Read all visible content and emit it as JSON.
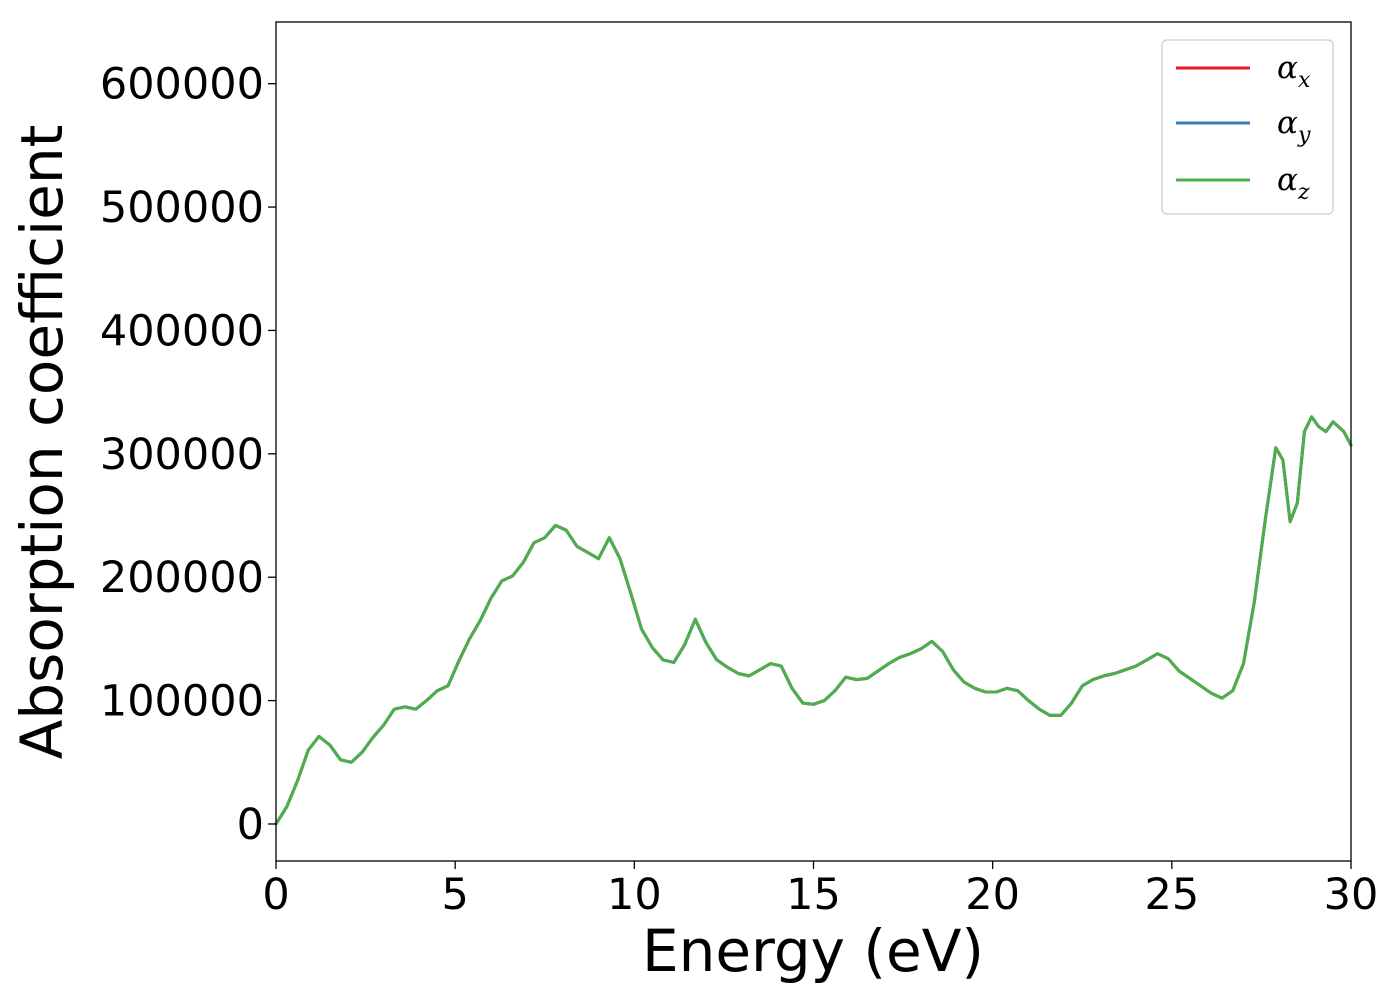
{
  "chart_data": {
    "type": "line",
    "title": "",
    "xlabel": "Energy (eV)",
    "ylabel": "Absorption coefficient",
    "xlim": [
      0,
      30
    ],
    "ylim": [
      -30000,
      650000
    ],
    "xticks": [
      0,
      5,
      10,
      15,
      20,
      25,
      30
    ],
    "xtick_labels": [
      "0",
      "5",
      "10",
      "15",
      "20",
      "25",
      "30"
    ],
    "yticks": [
      0,
      100000,
      200000,
      300000,
      400000,
      500000,
      600000
    ],
    "ytick_labels": [
      "0",
      "100000",
      "200000",
      "300000",
      "400000",
      "500000",
      "600000"
    ],
    "grid": false,
    "legend_position": "top-right",
    "legend": [
      {
        "symbol": "α",
        "subscript": "x",
        "color": "#e41a1c"
      },
      {
        "symbol": "α",
        "subscript": "y",
        "color": "#377eb8"
      },
      {
        "symbol": "α",
        "subscript": "z",
        "color": "#4daf4a"
      }
    ],
    "x": [
      0,
      0.3,
      0.6,
      0.9,
      1.2,
      1.5,
      1.8,
      2.1,
      2.4,
      2.7,
      3.0,
      3.3,
      3.6,
      3.9,
      4.2,
      4.5,
      4.8,
      5.1,
      5.4,
      5.7,
      6.0,
      6.3,
      6.6,
      6.9,
      7.2,
      7.5,
      7.8,
      8.1,
      8.4,
      8.7,
      9.0,
      9.3,
      9.6,
      9.9,
      10.2,
      10.5,
      10.8,
      11.1,
      11.4,
      11.7,
      12.0,
      12.3,
      12.6,
      12.9,
      13.2,
      13.5,
      13.8,
      14.1,
      14.4,
      14.7,
      15.0,
      15.3,
      15.6,
      15.9,
      16.2,
      16.5,
      16.8,
      17.1,
      17.4,
      17.7,
      18.0,
      18.3,
      18.6,
      18.9,
      19.2,
      19.5,
      19.8,
      20.1,
      20.4,
      20.7,
      21.0,
      21.3,
      21.6,
      21.9,
      22.2,
      22.5,
      22.8,
      23.1,
      23.4,
      23.7,
      24.0,
      24.3,
      24.6,
      24.9,
      25.2,
      25.5,
      25.8,
      26.1,
      26.4,
      26.7,
      27.0,
      27.3,
      27.6,
      27.9,
      28.1,
      28.3,
      28.5,
      28.7,
      28.9,
      29.1,
      29.3,
      29.5,
      29.8,
      30.0
    ],
    "series": [
      {
        "name": "α_x",
        "color": "#e41a1c",
        "values": [
          0,
          14000,
          35000,
          60000,
          71000,
          64000,
          52000,
          50000,
          58000,
          70000,
          80000,
          93000,
          95000,
          93000,
          100000,
          108000,
          112000,
          132000,
          150000,
          165000,
          183000,
          197000,
          201000,
          212000,
          228000,
          232000,
          242000,
          238000,
          225000,
          220000,
          215000,
          232000,
          215000,
          187000,
          158000,
          143000,
          133000,
          131000,
          145000,
          166000,
          147000,
          133000,
          127000,
          122000,
          120000,
          125000,
          130000,
          128000,
          110000,
          98000,
          97000,
          100000,
          108000,
          119000,
          117000,
          118000,
          124000,
          130000,
          135000,
          138000,
          142000,
          148000,
          140000,
          125000,
          115000,
          110000,
          107000,
          107000,
          110000,
          108000,
          100000,
          93000,
          88000,
          88000,
          98000,
          112000,
          117000,
          120000,
          122000,
          125000,
          128000,
          133000,
          138000,
          134000,
          124000,
          118000,
          112000,
          106000,
          102000,
          108000,
          130000,
          180000,
          245000,
          305000,
          295000,
          245000,
          260000,
          318000,
          330000,
          322000,
          318000,
          326000,
          318000,
          307000
        ]
      },
      {
        "name": "α_y",
        "color": "#377eb8",
        "values": [
          0,
          14000,
          35000,
          60000,
          71000,
          64000,
          52000,
          50000,
          58000,
          70000,
          80000,
          93000,
          95000,
          93000,
          100000,
          108000,
          112000,
          132000,
          150000,
          165000,
          183000,
          197000,
          201000,
          212000,
          228000,
          232000,
          242000,
          238000,
          225000,
          220000,
          215000,
          232000,
          215000,
          187000,
          158000,
          143000,
          133000,
          131000,
          145000,
          166000,
          147000,
          133000,
          127000,
          122000,
          120000,
          125000,
          130000,
          128000,
          110000,
          98000,
          97000,
          100000,
          108000,
          119000,
          117000,
          118000,
          124000,
          130000,
          135000,
          138000,
          142000,
          148000,
          140000,
          125000,
          115000,
          110000,
          107000,
          107000,
          110000,
          108000,
          100000,
          93000,
          88000,
          88000,
          98000,
          112000,
          117000,
          120000,
          122000,
          125000,
          128000,
          133000,
          138000,
          134000,
          124000,
          118000,
          112000,
          106000,
          102000,
          108000,
          130000,
          180000,
          245000,
          305000,
          295000,
          245000,
          260000,
          318000,
          330000,
          322000,
          318000,
          326000,
          318000,
          307000
        ]
      },
      {
        "name": "α_z",
        "color": "#4daf4a",
        "values": [
          0,
          14000,
          35000,
          60000,
          71000,
          64000,
          52000,
          50000,
          58000,
          70000,
          80000,
          93000,
          95000,
          93000,
          100000,
          108000,
          112000,
          132000,
          150000,
          165000,
          183000,
          197000,
          201000,
          212000,
          228000,
          232000,
          242000,
          238000,
          225000,
          220000,
          215000,
          232000,
          215000,
          187000,
          158000,
          143000,
          133000,
          131000,
          145000,
          166000,
          147000,
          133000,
          127000,
          122000,
          120000,
          125000,
          130000,
          128000,
          110000,
          98000,
          97000,
          100000,
          108000,
          119000,
          117000,
          118000,
          124000,
          130000,
          135000,
          138000,
          142000,
          148000,
          140000,
          125000,
          115000,
          110000,
          107000,
          107000,
          110000,
          108000,
          100000,
          93000,
          88000,
          88000,
          98000,
          112000,
          117000,
          120000,
          122000,
          125000,
          128000,
          133000,
          138000,
          134000,
          124000,
          118000,
          112000,
          106000,
          102000,
          108000,
          130000,
          180000,
          245000,
          305000,
          295000,
          245000,
          260000,
          318000,
          330000,
          322000,
          318000,
          326000,
          318000,
          307000
        ]
      }
    ]
  }
}
